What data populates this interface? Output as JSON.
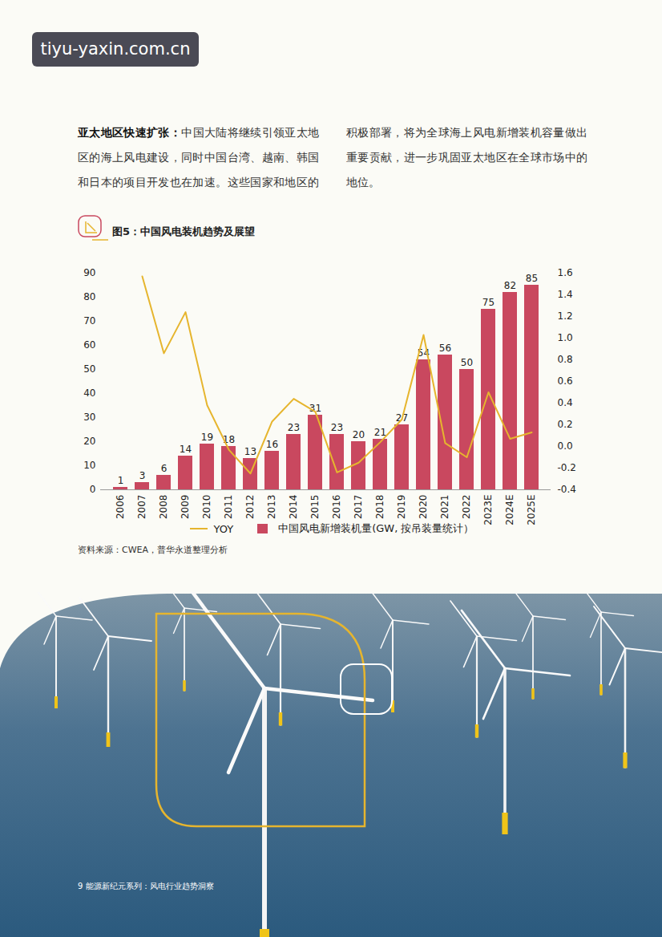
{
  "page": {
    "watermark": "tiyu-yaxin.com.cn",
    "paragraph_lead": "亚太地区快速扩张：",
    "paragraph_text": "中国大陆将继续引领亚太地区的海上风电建设，同时中国台湾、越南、韩国和日本的项目开发也在加速。这些国家和地区的积极部署，将为全球海上风电新增装机容量做出重要贡献，进一步巩固亚太地区在全球市场中的地位。",
    "source": "资料来源：CWEA，普华永道整理分析",
    "footer_page": "9",
    "footer_title": "能源新纪元系列：风电行业趋势洞察"
  },
  "chart_data": {
    "type": "bar",
    "title": "图5：中国风电装机趋势及展望",
    "categories": [
      "2006",
      "2007",
      "2008",
      "2009",
      "2010",
      "2011",
      "2012",
      "2013",
      "2014",
      "2015",
      "2016",
      "2017",
      "2018",
      "2019",
      "2020",
      "2021",
      "2022",
      "2023E",
      "2024E",
      "2025E"
    ],
    "series": [
      {
        "name": "YOY",
        "type": "line",
        "axis": "y2",
        "color": "#e6b52e",
        "values": [
          null,
          1.57,
          0.86,
          1.24,
          0.38,
          -0.03,
          -0.25,
          0.23,
          0.44,
          0.32,
          -0.24,
          -0.15,
          0.04,
          0.25,
          1.03,
          0.03,
          -0.1,
          0.5,
          0.07,
          0.13
        ]
      },
      {
        "name": "中国风电新增装机量(GW, 按吊装量统计）",
        "type": "bar",
        "color": "#c9485f",
        "data_labels": true,
        "values": [
          1,
          3,
          6,
          14,
          19,
          18,
          13,
          16,
          23,
          31,
          23,
          20,
          21,
          27,
          54,
          56,
          50,
          75,
          82,
          85
        ]
      }
    ],
    "ylim": [
      0,
      90
    ],
    "yticks": [
      0,
      10,
      20,
      30,
      40,
      50,
      60,
      70,
      80,
      90
    ],
    "y2lim": [
      -0.4,
      1.6
    ],
    "y2ticks": [
      -0.4,
      -0.2,
      {
        "value": 0,
        "label": "0.0"
      },
      0.2,
      0.4,
      0.6,
      0.8,
      {
        "value": 1,
        "label": "1.0"
      },
      1.2,
      1.4,
      1.6
    ],
    "legend": "bottom",
    "grid": false
  }
}
